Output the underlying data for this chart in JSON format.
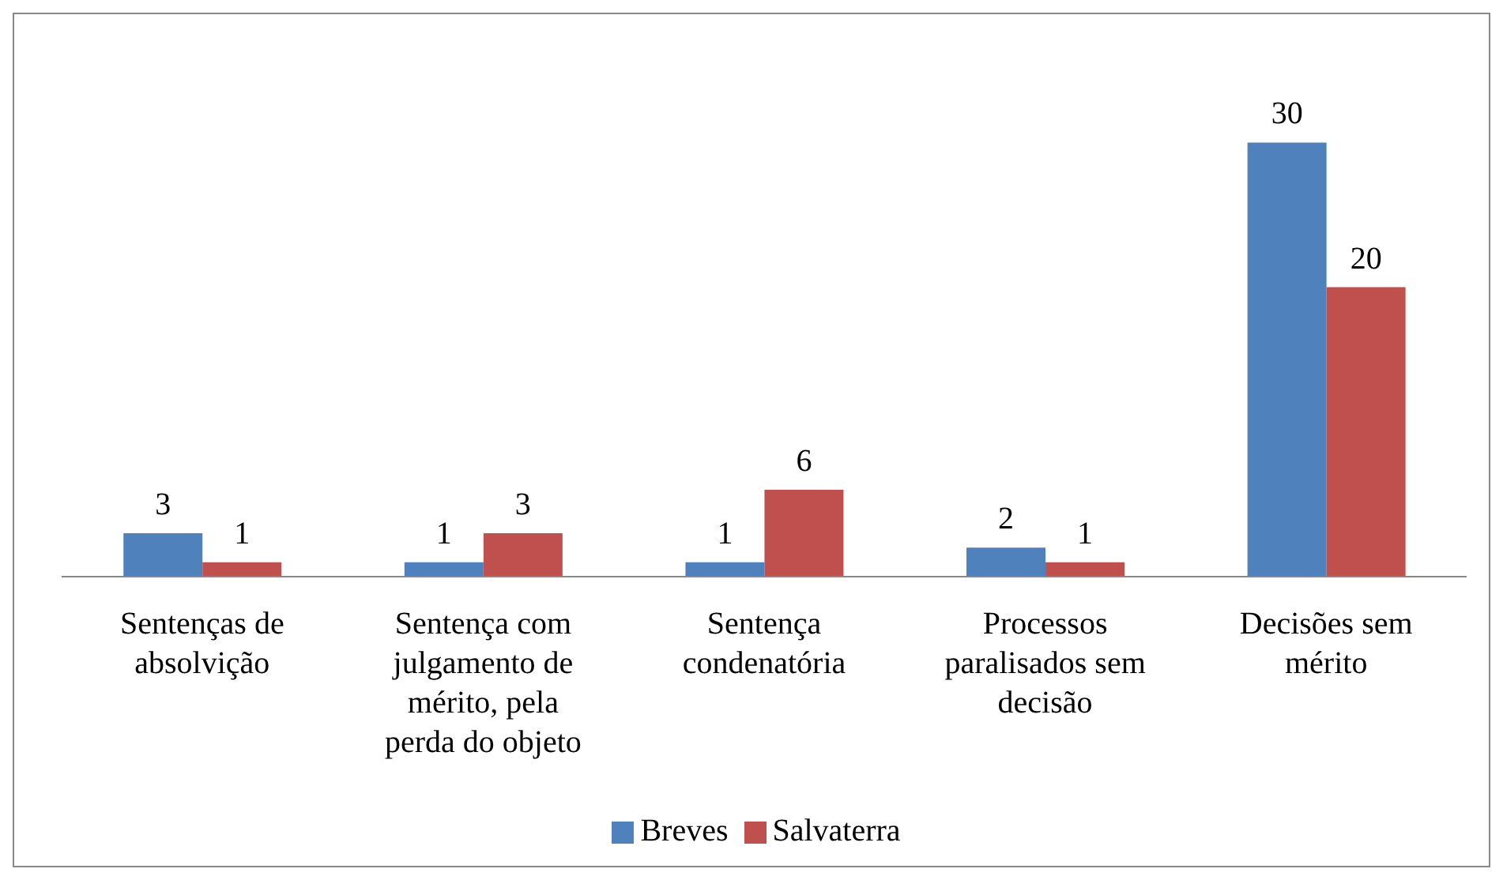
{
  "chart_data": {
    "type": "bar",
    "categories": [
      "Sentenças de absolvição",
      "Sentença com julgamento de mérito, pela perda do objeto",
      "Sentença condenatória",
      "Processos paralisados sem decisão",
      "Decisões sem mérito"
    ],
    "series": [
      {
        "name": "Breves",
        "color": "#4f81bd",
        "values": [
          3,
          1,
          1,
          2,
          30
        ]
      },
      {
        "name": "Salvaterra",
        "color": "#c0504d",
        "values": [
          1,
          3,
          6,
          1,
          20
        ]
      }
    ],
    "tick_labels": "x",
    "data_labels": true,
    "legend": "bottom",
    "grid": false
  }
}
